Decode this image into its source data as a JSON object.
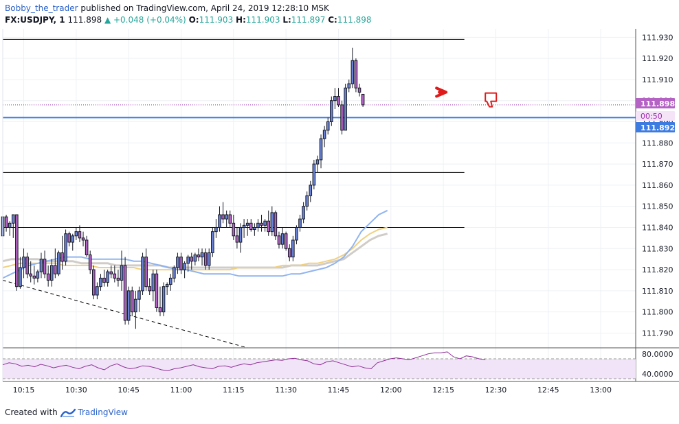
{
  "header": {
    "author": "Bobby_the_trader",
    "published": "published on TradingView.com, April 24, 2019 12:28:10 MSK",
    "symbol": "FX:USDJPY, 1",
    "last": "111.898",
    "change": "▲ +0.048 (+0.04%)",
    "o_label": "O:",
    "o": "111.903",
    "h_label": "H:",
    "h": "111.903",
    "l_label": "L:",
    "l": "111.897",
    "c_label": "C:",
    "c": "111.898"
  },
  "footer": {
    "created_with": "Created with",
    "brand": "TradingView"
  },
  "price_badges": {
    "last": "111.898",
    "countdown": "00:50",
    "line": "111.892"
  },
  "colors": {
    "bull_body": "#6a83d8",
    "bear_body": "#b462c4",
    "wick": "#131722",
    "last_line": "#9c27b0",
    "blue_line": "#3d7be0",
    "ma_fast": "#90b4f0",
    "ma_mid": "#f0d080",
    "ma_slow": "#d0ccc8",
    "rsi": "#8e3096",
    "rsi_band": "#f1e4f8"
  },
  "chart_data": {
    "type": "candlestick",
    "ylim": [
      111.783,
      111.934
    ],
    "y_ticks": [
      "111.930",
      "111.920",
      "111.910",
      "111.900",
      "111.890",
      "111.880",
      "111.870",
      "111.860",
      "111.850",
      "111.840",
      "111.830",
      "111.820",
      "111.810",
      "111.800",
      "111.790"
    ],
    "x_ticks": [
      "10:15",
      "10:30",
      "10:45",
      "11:00",
      "11:15",
      "11:30",
      "11:45",
      "12:00",
      "12:15",
      "12:30",
      "12:45",
      "13:00"
    ],
    "x_tick_minutes": [
      15,
      30,
      45,
      60,
      75,
      90,
      105,
      120,
      135,
      150,
      165,
      180
    ],
    "candles_start_minute": 9,
    "candles_interval_minutes": 1,
    "candles_ohlc": [
      [
        111.836,
        111.846,
        111.834,
        111.845
      ],
      [
        111.845,
        111.846,
        111.838,
        111.84
      ],
      [
        111.84,
        111.843,
        111.836,
        111.842
      ],
      [
        111.842,
        111.846,
        111.835,
        111.846
      ],
      [
        111.846,
        111.846,
        111.81,
        111.812
      ],
      [
        111.812,
        111.826,
        111.811,
        111.821
      ],
      [
        111.821,
        111.83,
        111.816,
        111.826
      ],
      [
        111.826,
        111.828,
        111.816,
        111.818
      ],
      [
        111.818,
        111.824,
        111.814,
        111.817
      ],
      [
        111.817,
        111.822,
        111.813,
        111.816
      ],
      [
        111.816,
        111.82,
        111.814,
        111.819
      ],
      [
        111.819,
        111.828,
        111.816,
        111.825
      ],
      [
        111.825,
        111.829,
        111.816,
        111.818
      ],
      [
        111.818,
        111.822,
        111.812,
        111.815
      ],
      [
        111.815,
        111.825,
        111.812,
        111.822
      ],
      [
        111.822,
        111.83,
        111.816,
        111.818
      ],
      [
        111.818,
        111.829,
        111.817,
        111.828
      ],
      [
        111.828,
        111.836,
        111.82,
        111.824
      ],
      [
        111.824,
        111.839,
        111.822,
        111.837
      ],
      [
        111.837,
        111.838,
        111.831,
        111.833
      ],
      [
        111.833,
        111.837,
        111.829,
        111.836
      ],
      [
        111.836,
        111.84,
        111.834,
        111.838
      ],
      [
        111.838,
        111.841,
        111.833,
        111.835
      ],
      [
        111.835,
        111.838,
        111.831,
        111.834
      ],
      [
        111.834,
        111.836,
        111.826,
        111.827
      ],
      [
        111.827,
        111.829,
        111.818,
        111.82
      ],
      [
        111.82,
        111.822,
        111.806,
        111.808
      ],
      [
        111.808,
        111.814,
        111.806,
        111.812
      ],
      [
        111.812,
        111.818,
        111.81,
        111.816
      ],
      [
        111.816,
        111.82,
        111.812,
        111.814
      ],
      [
        111.814,
        111.82,
        111.812,
        111.819
      ],
      [
        111.819,
        111.822,
        111.816,
        111.818
      ],
      [
        111.818,
        111.822,
        111.814,
        111.816
      ],
      [
        111.816,
        111.82,
        111.812,
        111.815
      ],
      [
        111.815,
        111.829,
        111.81,
        111.822
      ],
      [
        111.822,
        111.826,
        111.794,
        111.796
      ],
      [
        111.796,
        111.812,
        111.794,
        111.81
      ],
      [
        111.81,
        111.812,
        111.798,
        111.8
      ],
      [
        111.8,
        111.81,
        111.792,
        111.806
      ],
      [
        111.806,
        111.812,
        111.8,
        111.81
      ],
      [
        111.81,
        111.828,
        111.808,
        111.826
      ],
      [
        111.826,
        111.83,
        111.81,
        111.812
      ],
      [
        111.812,
        111.816,
        111.808,
        111.81
      ],
      [
        111.81,
        111.82,
        111.805,
        111.818
      ],
      [
        111.818,
        111.82,
        111.8,
        111.802
      ],
      [
        111.802,
        111.812,
        111.798,
        111.8
      ],
      [
        111.8,
        111.814,
        111.798,
        111.812
      ],
      [
        111.812,
        111.814,
        111.808,
        111.813
      ],
      [
        111.813,
        111.818,
        111.81,
        111.816
      ],
      [
        111.816,
        111.822,
        111.814,
        111.821
      ],
      [
        111.821,
        111.828,
        111.818,
        111.826
      ],
      [
        111.826,
        111.828,
        111.818,
        111.82
      ],
      [
        111.82,
        111.824,
        111.816,
        111.823
      ],
      [
        111.823,
        111.827,
        111.819,
        111.826
      ],
      [
        111.826,
        111.828,
        111.82,
        111.824
      ],
      [
        111.824,
        111.828,
        111.822,
        111.827
      ],
      [
        111.827,
        111.83,
        111.824,
        111.826
      ],
      [
        111.826,
        111.83,
        111.822,
        111.828
      ],
      [
        111.828,
        111.83,
        111.82,
        111.822
      ],
      [
        111.822,
        111.83,
        111.82,
        111.828
      ],
      [
        111.828,
        111.84,
        111.826,
        111.838
      ],
      [
        111.838,
        111.844,
        111.835,
        111.84
      ],
      [
        111.84,
        111.85,
        111.838,
        111.846
      ],
      [
        111.846,
        111.852,
        111.842,
        111.844
      ],
      [
        111.844,
        111.848,
        111.84,
        111.846
      ],
      [
        111.846,
        111.848,
        111.84,
        111.842
      ],
      [
        111.842,
        111.846,
        111.834,
        111.836
      ],
      [
        111.836,
        111.84,
        111.83,
        111.833
      ],
      [
        111.833,
        111.842,
        111.828,
        111.84
      ],
      [
        111.84,
        111.844,
        111.835,
        111.841
      ],
      [
        111.841,
        111.844,
        111.836,
        111.842
      ],
      [
        111.842,
        111.844,
        111.838,
        111.839
      ],
      [
        111.839,
        111.842,
        111.836,
        111.84
      ],
      [
        111.84,
        111.844,
        111.838,
        111.842
      ],
      [
        111.842,
        111.846,
        111.838,
        111.841
      ],
      [
        111.841,
        111.844,
        111.838,
        111.843
      ],
      [
        111.843,
        111.848,
        111.836,
        111.838
      ],
      [
        111.838,
        111.85,
        111.836,
        111.847
      ],
      [
        111.847,
        111.848,
        111.834,
        111.836
      ],
      [
        111.836,
        111.838,
        111.83,
        111.832
      ],
      [
        111.832,
        111.84,
        111.83,
        111.837
      ],
      [
        111.837,
        111.838,
        111.829,
        111.83
      ],
      [
        111.83,
        111.832,
        111.824,
        111.826
      ],
      [
        111.826,
        111.836,
        111.824,
        111.834
      ],
      [
        111.834,
        111.841,
        111.832,
        111.84
      ],
      [
        111.84,
        111.846,
        111.838,
        111.844
      ],
      [
        111.844,
        111.852,
        111.842,
        111.85
      ],
      [
        111.85,
        111.857,
        111.848,
        111.855
      ],
      [
        111.855,
        111.862,
        111.852,
        111.86
      ],
      [
        111.86,
        111.872,
        111.858,
        111.87
      ],
      [
        111.87,
        111.874,
        111.866,
        111.872
      ],
      [
        111.872,
        111.884,
        111.868,
        111.882
      ],
      [
        111.882,
        111.888,
        111.878,
        111.886
      ],
      [
        111.886,
        111.892,
        111.884,
        111.89
      ],
      [
        111.89,
        111.902,
        111.888,
        111.9
      ],
      [
        111.9,
        111.906,
        111.896,
        111.902
      ],
      [
        111.902,
        111.906,
        111.897,
        111.898
      ],
      [
        111.898,
        111.9,
        111.884,
        111.886
      ],
      [
        111.886,
        111.908,
        111.886,
        111.906
      ],
      [
        111.906,
        111.91,
        111.904,
        111.908
      ],
      [
        111.908,
        111.925,
        111.906,
        111.919
      ],
      [
        111.919,
        111.92,
        111.904,
        111.906
      ],
      [
        111.906,
        111.908,
        111.902,
        111.904
      ],
      [
        111.903,
        111.903,
        111.897,
        111.898
      ]
    ],
    "ma_fast": [
      111.816,
      111.818,
      111.82,
      111.822,
      111.823,
      111.824,
      111.825,
      111.826,
      111.826,
      111.826,
      111.825,
      111.825,
      111.825,
      111.825,
      111.825,
      111.824,
      111.824,
      111.823,
      111.822,
      111.821,
      111.82,
      111.82,
      111.819,
      111.818,
      111.818,
      111.818,
      111.818,
      111.817,
      111.817,
      111.817,
      111.817,
      111.817,
      111.817,
      111.818,
      111.818,
      111.819,
      111.82,
      111.821,
      111.823,
      111.826,
      111.831,
      111.838,
      111.842,
      111.846,
      111.848
    ],
    "ma_mid": [
      111.821,
      111.822,
      111.823,
      111.823,
      111.823,
      111.823,
      111.823,
      111.822,
      111.822,
      111.822,
      111.822,
      111.821,
      111.821,
      111.821,
      111.821,
      111.821,
      111.82,
      111.82,
      111.82,
      111.82,
      111.82,
      111.82,
      111.82,
      111.82,
      111.82,
      111.82,
      111.82,
      111.821,
      111.821,
      111.821,
      111.821,
      111.821,
      111.822,
      111.822,
      111.822,
      111.823,
      111.823,
      111.824,
      111.825,
      111.827,
      111.83,
      111.834,
      111.837,
      111.839,
      111.84
    ],
    "ma_slow": [
      111.824,
      111.825,
      111.825,
      111.825,
      111.825,
      111.824,
      111.824,
      111.824,
      111.824,
      111.823,
      111.823,
      111.823,
      111.823,
      111.822,
      111.822,
      111.822,
      111.822,
      111.822,
      111.822,
      111.821,
      111.821,
      111.821,
      111.821,
      111.821,
      111.821,
      111.821,
      111.821,
      111.821,
      111.821,
      111.821,
      111.821,
      111.821,
      111.821,
      111.822,
      111.822,
      111.822,
      111.822,
      111.823,
      111.824,
      111.825,
      111.828,
      111.831,
      111.834,
      111.836,
      111.837
    ],
    "ma_start_minute": 9,
    "ma_interval_minutes": 2.5,
    "horizontal_lines": [
      {
        "style": "black",
        "price": 111.929,
        "from_minute": 9,
        "to_minute": 141
      },
      {
        "style": "black",
        "price": 111.866,
        "from_minute": 9,
        "to_minute": 141
      },
      {
        "style": "black",
        "price": 111.84,
        "from_minute": 9,
        "to_minute": 141
      },
      {
        "style": "blue",
        "price": 111.892
      },
      {
        "style": "dotted",
        "price": 111.898
      }
    ],
    "trend_line": {
      "from_minute": 9,
      "from_price": 111.815,
      "to_minute": 79,
      "to_price": 111.783
    },
    "rsi": {
      "y_ticks": [
        "80.0000",
        "40.0000"
      ],
      "band": [
        70,
        30
      ],
      "ylim": [
        30,
        88
      ],
      "values": [
        58,
        62,
        60,
        55,
        57,
        54,
        59,
        56,
        52,
        55,
        57,
        53,
        50,
        55,
        58,
        52,
        48,
        56,
        60,
        54,
        50,
        52,
        56,
        55,
        52,
        48,
        46,
        50,
        52,
        55,
        58,
        54,
        52,
        50,
        55,
        56,
        53,
        57,
        60,
        58,
        62,
        64,
        66,
        68,
        67,
        70,
        71,
        68,
        66,
        60,
        58,
        64,
        66,
        62,
        58,
        54,
        56,
        52,
        50,
        62,
        66,
        70,
        72,
        70,
        68,
        72,
        76,
        80,
        82,
        82,
        84,
        74,
        70,
        76,
        74,
        70,
        68
      ]
    },
    "annotations": [
      {
        "type": "arrow",
        "color": "#e01b1b",
        "minute": 135,
        "price": 111.904
      },
      {
        "type": "thumb-down",
        "color": "#e01b1b",
        "minute": 147,
        "price": 111.901
      }
    ]
  }
}
